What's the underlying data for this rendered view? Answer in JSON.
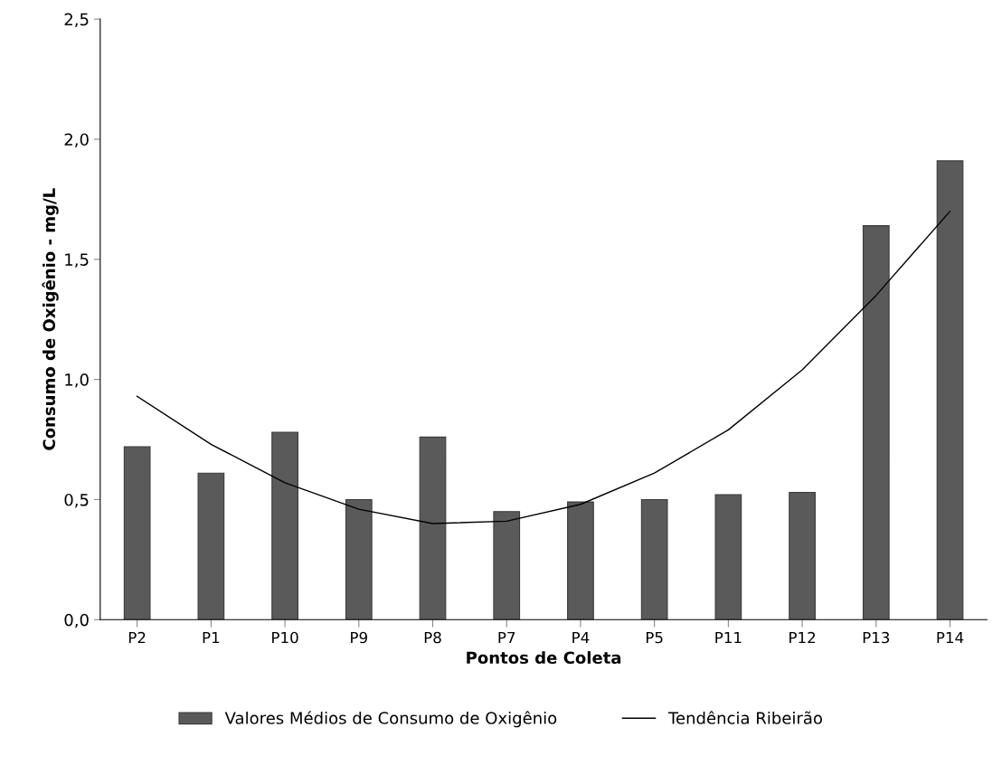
{
  "chart_data": {
    "type": "bar",
    "xlabel": "Pontos de Coleta",
    "ylabel": "Consumo de Oxigênio - mg/L",
    "categories": [
      "P2",
      "P1",
      "P10",
      "P9",
      "P8",
      "P7",
      "P4",
      "P5",
      "P11",
      "P12",
      "P13",
      "P14"
    ],
    "series": [
      {
        "name": "Valores Médios de Consumo de Oxigênio",
        "color": "#5a5a5a",
        "values": [
          0.72,
          0.61,
          0.78,
          0.5,
          0.76,
          0.45,
          0.49,
          0.5,
          0.52,
          0.53,
          1.64,
          1.91
        ]
      },
      {
        "name": "Tendência Ribeirão",
        "type": "line",
        "color": "#000000",
        "values": [
          0.93,
          0.73,
          0.57,
          0.46,
          0.4,
          0.41,
          0.48,
          0.61,
          0.79,
          1.04,
          1.35,
          1.7
        ]
      }
    ],
    "ylim": [
      0,
      2.5
    ],
    "yticks": [
      {
        "value": 0,
        "label": "0,0"
      },
      {
        "value": 0.5,
        "label": "0,5"
      },
      {
        "value": 1.0,
        "label": "1,0"
      },
      {
        "value": 1.5,
        "label": "1,5"
      },
      {
        "value": 2.0,
        "label": "2,0"
      },
      {
        "value": 2.5,
        "label": "2,5"
      }
    ],
    "grid": false,
    "legend": "bottom",
    "marker": "none",
    "line_style": "solid"
  }
}
